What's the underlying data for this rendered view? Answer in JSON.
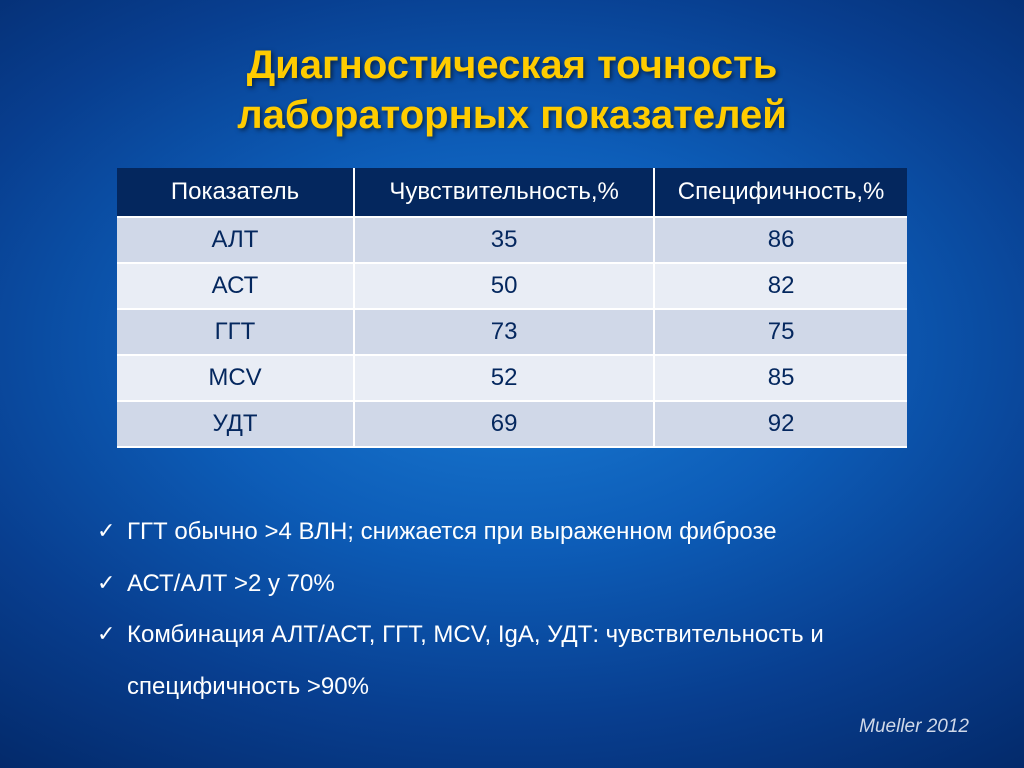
{
  "title": {
    "line1": "Диагностическая точность",
    "line2": "лабораторных показателей",
    "color": "#ffcc00",
    "fontsize": 40
  },
  "table": {
    "header_bg": "#04275e",
    "header_color": "#ffffff",
    "row_color": "#04275e",
    "body_fontsize": 24,
    "border_color": "#ffffff",
    "columns": [
      "Показатель",
      "Чувствительность,%",
      "Специфичность,%"
    ],
    "rows": [
      {
        "cells": [
          "АЛТ",
          "35",
          "86"
        ],
        "bg": "#d0d8e8"
      },
      {
        "cells": [
          "АСТ",
          "50",
          "82"
        ],
        "bg": "#e9edf5"
      },
      {
        "cells": [
          "ГГТ",
          "73",
          "75"
        ],
        "bg": "#d0d8e8"
      },
      {
        "cells": [
          "MCV",
          "52",
          "85"
        ],
        "bg": "#e9edf5"
      },
      {
        "cells": [
          "УДТ",
          "69",
          "92"
        ],
        "bg": "#d0d8e8"
      }
    ]
  },
  "bullets": [
    "ГГТ обычно >4 ВЛН; снижается при выраженном фиброзе",
    "АСТ/АЛТ >2 у 70%",
    "Комбинация АЛТ/АСТ, ГГТ, MCV, IgA, УДТ: чувствительность и специфичность >90%"
  ],
  "citation": "Mueller 2012"
}
